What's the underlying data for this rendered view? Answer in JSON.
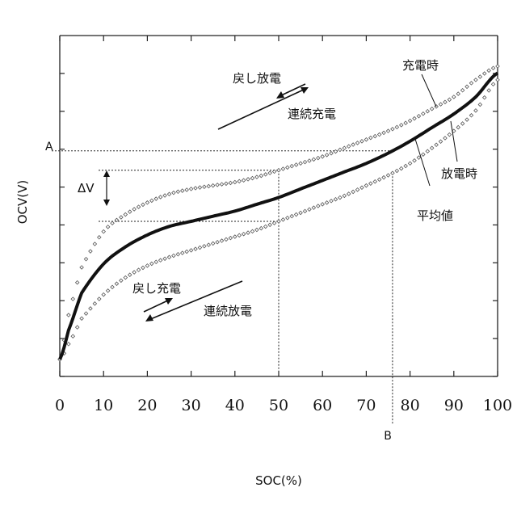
{
  "chart_data": {
    "type": "line",
    "xlabel": "SOC(%)",
    "ylabel": "OCV(V)",
    "xlim": [
      0,
      100
    ],
    "x_ticks": [
      "0",
      "10",
      "20",
      "30",
      "40",
      "50",
      "60",
      "70",
      "80",
      "90",
      "100"
    ],
    "y_ticks_labeled": false,
    "grid": false,
    "series": [
      {
        "name": "充電時",
        "style": "open-diamond-markers",
        "x": [
          0,
          2,
          5,
          10,
          15,
          20,
          25,
          30,
          35,
          40,
          45,
          50,
          55,
          60,
          65,
          70,
          75,
          80,
          85,
          90,
          95,
          100
        ],
        "y": [
          0.05,
          0.18,
          0.32,
          0.425,
          0.475,
          0.51,
          0.535,
          0.55,
          0.56,
          0.57,
          0.585,
          0.605,
          0.625,
          0.645,
          0.67,
          0.695,
          0.72,
          0.75,
          0.785,
          0.82,
          0.87,
          0.91
        ]
      },
      {
        "name": "平均値",
        "style": "bold-solid",
        "x": [
          0,
          2,
          5,
          10,
          15,
          20,
          25,
          30,
          35,
          40,
          45,
          50,
          55,
          60,
          65,
          70,
          75,
          80,
          85,
          90,
          95,
          100
        ],
        "y": [
          0.05,
          0.135,
          0.245,
          0.33,
          0.38,
          0.415,
          0.44,
          0.455,
          0.47,
          0.485,
          0.505,
          0.525,
          0.55,
          0.575,
          0.6,
          0.625,
          0.655,
          0.69,
          0.73,
          0.77,
          0.82,
          0.89
        ]
      },
      {
        "name": "放電時",
        "style": "open-diamond-markers",
        "x": [
          0,
          2,
          5,
          10,
          15,
          20,
          25,
          30,
          35,
          40,
          45,
          50,
          55,
          60,
          65,
          70,
          75,
          80,
          85,
          90,
          95,
          100
        ],
        "y": [
          0.05,
          0.095,
          0.17,
          0.24,
          0.29,
          0.325,
          0.35,
          0.37,
          0.39,
          0.41,
          0.43,
          0.455,
          0.48,
          0.505,
          0.53,
          0.56,
          0.59,
          0.625,
          0.67,
          0.72,
          0.78,
          0.87
        ]
      }
    ],
    "annotations": {
      "point_a": "A",
      "point_b": "B",
      "delta_v": "ΔV",
      "top_back": "戻し放電",
      "top_cont": "連続充電",
      "bottom_back": "戻し充電",
      "bottom_cont": "連続放電",
      "b_x": 76
    }
  }
}
